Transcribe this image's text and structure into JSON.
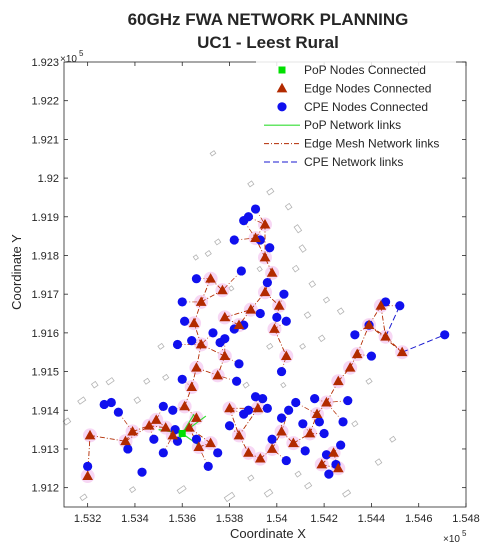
{
  "chart_data": {
    "type": "scatter",
    "title": "60GHz FWA NETWORK PLANNING",
    "subtitle": "UC1 - Leest Rural",
    "xlabel": "Coordinate X",
    "ylabel": "Coordinate Y",
    "x_exponent_base": "×10",
    "x_exponent_power": "5",
    "y_exponent_base": "×10",
    "y_exponent_power": "5",
    "xlim": [
      1.531,
      1.548
    ],
    "ylim": [
      1.9115,
      1.923
    ],
    "x_ticks": [
      1.532,
      1.534,
      1.536,
      1.538,
      1.54,
      1.542,
      1.544,
      1.546,
      1.548
    ],
    "x_tick_labels": [
      "1.532",
      "1.534",
      "1.536",
      "1.538",
      "1.54",
      "1.542",
      "1.544",
      "1.546",
      "1.548"
    ],
    "y_ticks": [
      1.912,
      1.913,
      1.914,
      1.915,
      1.916,
      1.917,
      1.918,
      1.919,
      1.92,
      1.921,
      1.922,
      1.923
    ],
    "y_tick_labels": [
      "1.912",
      "1.913",
      "1.914",
      "1.915",
      "1.916",
      "1.917",
      "1.918",
      "1.919",
      "1.92",
      "1.921",
      "1.922",
      "1.923"
    ],
    "grid": false,
    "legend_position": "top-right",
    "colors": {
      "pop": "#00e000",
      "edge": "#b22a00",
      "cpe": "#1010ee",
      "pop_link": "#33dd33",
      "edge_link": "#b22a00",
      "cpe_link": "#1a1ad0",
      "building": "#b4b4b4",
      "halo": "#f4c6f0"
    },
    "legend": [
      {
        "label": "PoP Nodes Connected",
        "kind": "pop"
      },
      {
        "label": "Edge Nodes Connected",
        "kind": "edge"
      },
      {
        "label": "CPE Nodes Connected",
        "kind": "cpe"
      },
      {
        "label": "PoP Network links",
        "kind": "pop_link"
      },
      {
        "label": "Edge Mesh Network links",
        "kind": "edge_link"
      },
      {
        "label": "CPE Network links",
        "kind": "cpe_link"
      }
    ],
    "pop_nodes": [
      {
        "x": 1.536,
        "y": 1.9134
      }
    ],
    "edge_nodes": [
      {
        "x": 1.532,
        "y": 1.9123
      },
      {
        "x": 1.5321,
        "y": 1.91335
      },
      {
        "x": 1.5336,
        "y": 1.9132
      },
      {
        "x": 1.5339,
        "y": 1.91345
      },
      {
        "x": 1.5346,
        "y": 1.9136
      },
      {
        "x": 1.5349,
        "y": 1.91375
      },
      {
        "x": 1.5353,
        "y": 1.91355
      },
      {
        "x": 1.5356,
        "y": 1.91335
      },
      {
        "x": 1.5363,
        "y": 1.91355
      },
      {
        "x": 1.5366,
        "y": 1.9138
      },
      {
        "x": 1.5367,
        "y": 1.91305
      },
      {
        "x": 1.5372,
        "y": 1.91315
      },
      {
        "x": 1.5361,
        "y": 1.9141
      },
      {
        "x": 1.5364,
        "y": 1.9146
      },
      {
        "x": 1.5366,
        "y": 1.9151
      },
      {
        "x": 1.5368,
        "y": 1.9157
      },
      {
        "x": 1.5365,
        "y": 1.91625
      },
      {
        "x": 1.5368,
        "y": 1.9168
      },
      {
        "x": 1.5372,
        "y": 1.9174
      },
      {
        "x": 1.5377,
        "y": 1.9171
      },
      {
        "x": 1.5378,
        "y": 1.9154
      },
      {
        "x": 1.5375,
        "y": 1.9149
      },
      {
        "x": 1.538,
        "y": 1.91405
      },
      {
        "x": 1.5384,
        "y": 1.91335
      },
      {
        "x": 1.5388,
        "y": 1.9129
      },
      {
        "x": 1.5393,
        "y": 1.91275
      },
      {
        "x": 1.5392,
        "y": 1.91405
      },
      {
        "x": 1.5398,
        "y": 1.913
      },
      {
        "x": 1.5402,
        "y": 1.91345
      },
      {
        "x": 1.5407,
        "y": 1.91315
      },
      {
        "x": 1.5389,
        "y": 1.9166
      },
      {
        "x": 1.5395,
        "y": 1.91705
      },
      {
        "x": 1.5398,
        "y": 1.91755
      },
      {
        "x": 1.5395,
        "y": 1.91795
      },
      {
        "x": 1.5391,
        "y": 1.91845
      },
      {
        "x": 1.5395,
        "y": 1.9188
      },
      {
        "x": 1.5401,
        "y": 1.9167
      },
      {
        "x": 1.5399,
        "y": 1.9161
      },
      {
        "x": 1.5404,
        "y": 1.9154
      },
      {
        "x": 1.5414,
        "y": 1.9134
      },
      {
        "x": 1.5417,
        "y": 1.9139
      },
      {
        "x": 1.5421,
        "y": 1.9142
      },
      {
        "x": 1.5426,
        "y": 1.91475
      },
      {
        "x": 1.5431,
        "y": 1.9151
      },
      {
        "x": 1.5434,
        "y": 1.91545
      },
      {
        "x": 1.5439,
        "y": 1.9162
      },
      {
        "x": 1.5444,
        "y": 1.9167
      },
      {
        "x": 1.5446,
        "y": 1.9159
      },
      {
        "x": 1.5453,
        "y": 1.9155
      },
      {
        "x": 1.5419,
        "y": 1.9126
      },
      {
        "x": 1.5424,
        "y": 1.9129
      },
      {
        "x": 1.5426,
        "y": 1.9125
      },
      {
        "x": 1.5384,
        "y": 1.9162
      },
      {
        "x": 1.5378,
        "y": 1.9164
      }
    ],
    "cpe_nodes": [
      {
        "x": 1.532,
        "y": 1.91255
      },
      {
        "x": 1.5327,
        "y": 1.91415
      },
      {
        "x": 1.533,
        "y": 1.9142
      },
      {
        "x": 1.5333,
        "y": 1.91395
      },
      {
        "x": 1.5337,
        "y": 1.913
      },
      {
        "x": 1.5343,
        "y": 1.9124
      },
      {
        "x": 1.5348,
        "y": 1.91325
      },
      {
        "x": 1.5352,
        "y": 1.9129
      },
      {
        "x": 1.5357,
        "y": 1.9135
      },
      {
        "x": 1.536,
        "y": 1.9148
      },
      {
        "x": 1.5358,
        "y": 1.9157
      },
      {
        "x": 1.5361,
        "y": 1.9163
      },
      {
        "x": 1.536,
        "y": 1.9168
      },
      {
        "x": 1.5364,
        "y": 1.9158
      },
      {
        "x": 1.5366,
        "y": 1.9174
      },
      {
        "x": 1.5373,
        "y": 1.916
      },
      {
        "x": 1.5376,
        "y": 1.91575
      },
      {
        "x": 1.5378,
        "y": 1.91585
      },
      {
        "x": 1.5382,
        "y": 1.9161
      },
      {
        "x": 1.5384,
        "y": 1.9152
      },
      {
        "x": 1.5386,
        "y": 1.9162
      },
      {
        "x": 1.5385,
        "y": 1.9176
      },
      {
        "x": 1.5382,
        "y": 1.9184
      },
      {
        "x": 1.5386,
        "y": 1.9189
      },
      {
        "x": 1.5388,
        "y": 1.919
      },
      {
        "x": 1.5391,
        "y": 1.9192
      },
      {
        "x": 1.5393,
        "y": 1.9184
      },
      {
        "x": 1.5397,
        "y": 1.9182
      },
      {
        "x": 1.5396,
        "y": 1.9173
      },
      {
        "x": 1.5393,
        "y": 1.9165
      },
      {
        "x": 1.54,
        "y": 1.9164
      },
      {
        "x": 1.5403,
        "y": 1.917
      },
      {
        "x": 1.5404,
        "y": 1.9163
      },
      {
        "x": 1.5402,
        "y": 1.915
      },
      {
        "x": 1.5383,
        "y": 1.91475
      },
      {
        "x": 1.538,
        "y": 1.9136
      },
      {
        "x": 1.5386,
        "y": 1.9139
      },
      {
        "x": 1.5388,
        "y": 1.914
      },
      {
        "x": 1.5391,
        "y": 1.91435
      },
      {
        "x": 1.5394,
        "y": 1.9143
      },
      {
        "x": 1.5396,
        "y": 1.91405
      },
      {
        "x": 1.5398,
        "y": 1.91325
      },
      {
        "x": 1.5402,
        "y": 1.9138
      },
      {
        "x": 1.5405,
        "y": 1.914
      },
      {
        "x": 1.5408,
        "y": 1.9142
      },
      {
        "x": 1.5411,
        "y": 1.91365
      },
      {
        "x": 1.5412,
        "y": 1.91295
      },
      {
        "x": 1.5404,
        "y": 1.9127
      },
      {
        "x": 1.5375,
        "y": 1.9129
      },
      {
        "x": 1.5371,
        "y": 1.91255
      },
      {
        "x": 1.5366,
        "y": 1.91325
      },
      {
        "x": 1.5416,
        "y": 1.9143
      },
      {
        "x": 1.5418,
        "y": 1.9137
      },
      {
        "x": 1.542,
        "y": 1.9134
      },
      {
        "x": 1.5421,
        "y": 1.91285
      },
      {
        "x": 1.5422,
        "y": 1.91235
      },
      {
        "x": 1.5425,
        "y": 1.9126
      },
      {
        "x": 1.5427,
        "y": 1.9131
      },
      {
        "x": 1.5428,
        "y": 1.9137
      },
      {
        "x": 1.543,
        "y": 1.91425
      },
      {
        "x": 1.5433,
        "y": 1.91595
      },
      {
        "x": 1.5439,
        "y": 1.9162
      },
      {
        "x": 1.544,
        "y": 1.9154
      },
      {
        "x": 1.5446,
        "y": 1.9168
      },
      {
        "x": 1.5452,
        "y": 1.9167
      },
      {
        "x": 1.5471,
        "y": 1.91595
      },
      {
        "x": 1.5352,
        "y": 1.9141
      },
      {
        "x": 1.5356,
        "y": 1.914
      },
      {
        "x": 1.5358,
        "y": 1.9132
      }
    ],
    "pop_links": [
      {
        "x1": 1.536,
        "y1": 1.9134,
        "x2": 1.537,
        "y2": 1.91385
      },
      {
        "x1": 1.536,
        "y1": 1.9134,
        "x2": 1.5368,
        "y2": 1.91305
      },
      {
        "x1": 1.536,
        "y1": 1.9134,
        "x2": 1.535,
        "y2": 1.9135
      },
      {
        "x1": 1.536,
        "y1": 1.9134,
        "x2": 1.5358,
        "y2": 1.9131
      },
      {
        "x1": 1.536,
        "y1": 1.9134,
        "x2": 1.5365,
        "y2": 1.9139
      }
    ],
    "cpe_links": [
      {
        "x1": 1.5453,
        "y1": 1.9155,
        "x2": 1.5471,
        "y2": 1.91595
      },
      {
        "x1": 1.5446,
        "y1": 1.9159,
        "x2": 1.5452,
        "y2": 1.9167
      }
    ],
    "buildings": [
      {
        "x": 1.531,
        "y": 1.91365,
        "w": 0.00025,
        "h": 0.00012
      },
      {
        "x": 1.5316,
        "y": 1.9142,
        "w": 0.0003,
        "h": 0.0001
      },
      {
        "x": 1.5322,
        "y": 1.9146,
        "w": 0.0002,
        "h": 0.00012
      },
      {
        "x": 1.5328,
        "y": 1.9147,
        "w": 0.0003,
        "h": 0.0001
      },
      {
        "x": 1.534,
        "y": 1.9142,
        "w": 0.0002,
        "h": 0.00012
      },
      {
        "x": 1.5317,
        "y": 1.9117,
        "w": 0.00025,
        "h": 0.0001
      },
      {
        "x": 1.5338,
        "y": 1.9119,
        "w": 0.0002,
        "h": 0.0001
      },
      {
        "x": 1.5358,
        "y": 1.9119,
        "w": 0.00035,
        "h": 0.0001
      },
      {
        "x": 1.5378,
        "y": 1.9117,
        "w": 0.0004,
        "h": 0.00012
      },
      {
        "x": 1.5395,
        "y": 1.9118,
        "w": 0.0003,
        "h": 0.00012
      },
      {
        "x": 1.5412,
        "y": 1.912,
        "w": 0.00025,
        "h": 0.0001
      },
      {
        "x": 1.5428,
        "y": 1.9118,
        "w": 0.0003,
        "h": 0.0001
      },
      {
        "x": 1.5442,
        "y": 1.9126,
        "w": 0.0002,
        "h": 0.00012
      },
      {
        "x": 1.5448,
        "y": 1.9132,
        "w": 0.0002,
        "h": 0.0001
      },
      {
        "x": 1.5372,
        "y": 1.9206,
        "w": 0.0002,
        "h": 8e-05
      },
      {
        "x": 1.5388,
        "y": 1.9198,
        "w": 0.0002,
        "h": 0.0001
      },
      {
        "x": 1.5396,
        "y": 1.9196,
        "w": 0.00025,
        "h": 0.0001
      },
      {
        "x": 1.5404,
        "y": 1.9192,
        "w": 0.0002,
        "h": 0.00012
      },
      {
        "x": 1.5408,
        "y": 1.9186,
        "w": 0.00018,
        "h": 0.00018
      },
      {
        "x": 1.541,
        "y": 1.9181,
        "w": 0.00018,
        "h": 0.00016
      },
      {
        "x": 1.5407,
        "y": 1.9176,
        "w": 0.0002,
        "h": 0.00012
      },
      {
        "x": 1.5414,
        "y": 1.9172,
        "w": 0.0002,
        "h": 0.00012
      },
      {
        "x": 1.542,
        "y": 1.9168,
        "w": 0.0002,
        "h": 0.0001
      },
      {
        "x": 1.5426,
        "y": 1.9165,
        "w": 0.0002,
        "h": 0.00012
      },
      {
        "x": 1.5412,
        "y": 1.9164,
        "w": 0.0002,
        "h": 0.00012
      },
      {
        "x": 1.5418,
        "y": 1.9158,
        "w": 0.0002,
        "h": 0.00012
      },
      {
        "x": 1.541,
        "y": 1.9156,
        "w": 0.00018,
        "h": 0.0001
      },
      {
        "x": 1.537,
        "y": 1.918,
        "w": 0.0002,
        "h": 0.0001
      },
      {
        "x": 1.5374,
        "y": 1.9183,
        "w": 0.0002,
        "h": 0.0001
      },
      {
        "x": 1.5365,
        "y": 1.9179,
        "w": 0.00015,
        "h": 0.0001
      },
      {
        "x": 1.535,
        "y": 1.9156,
        "w": 0.0002,
        "h": 0.0001
      },
      {
        "x": 1.5352,
        "y": 1.9148,
        "w": 0.0002,
        "h": 0.0001
      },
      {
        "x": 1.5344,
        "y": 1.9147,
        "w": 0.0002,
        "h": 0.0001
      },
      {
        "x": 1.5386,
        "y": 1.9146,
        "w": 0.0002,
        "h": 0.0001
      },
      {
        "x": 1.5388,
        "y": 1.9122,
        "w": 0.0002,
        "h": 0.0001
      },
      {
        "x": 1.5408,
        "y": 1.9123,
        "w": 0.0002,
        "h": 0.0001
      },
      {
        "x": 1.5432,
        "y": 1.9136,
        "w": 0.0002,
        "h": 0.0001
      },
      {
        "x": 1.5438,
        "y": 1.9147,
        "w": 0.0002,
        "h": 0.0001
      },
      {
        "x": 1.5402,
        "y": 1.9146,
        "w": 0.00015,
        "h": 0.0001
      },
      {
        "x": 1.5396,
        "y": 1.9156,
        "w": 0.0002,
        "h": 0.0001
      },
      {
        "x": 1.538,
        "y": 1.9171,
        "w": 0.00015,
        "h": 0.0001
      },
      {
        "x": 1.5392,
        "y": 1.9176,
        "w": 0.00015,
        "h": 0.0001
      }
    ]
  }
}
